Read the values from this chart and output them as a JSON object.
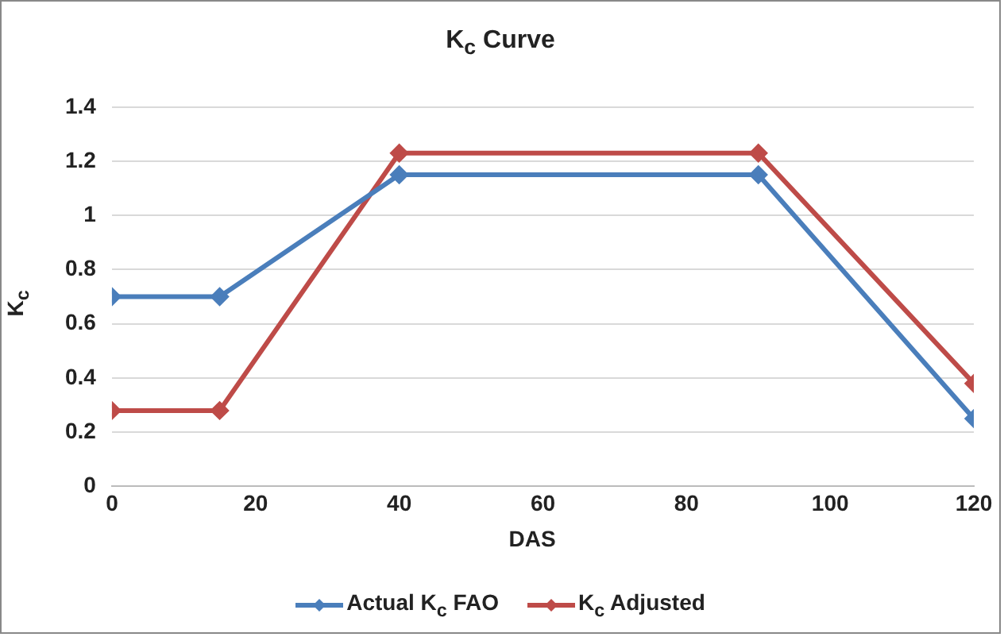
{
  "chart_data": {
    "type": "line",
    "title": "K$_{c}$ Curve",
    "xlabel": "DAS",
    "ylabel": "K$_{c}$",
    "x": [
      0,
      15,
      40,
      90,
      120
    ],
    "series": [
      {
        "name": "Actual K$_{c}$ FAO",
        "color": "#4a7ebb",
        "values": [
          0.7,
          0.7,
          1.15,
          1.15,
          0.25
        ]
      },
      {
        "name": "K$_{c}$ Adjusted",
        "color": "#be4b48",
        "values": [
          0.28,
          0.28,
          1.23,
          1.23,
          0.38
        ]
      }
    ],
    "xlim": [
      0,
      120
    ],
    "xticks": [
      0,
      20,
      40,
      60,
      80,
      100,
      120
    ],
    "ylim": [
      0,
      1.4
    ],
    "yticks": [
      0,
      0.2,
      0.4,
      0.6,
      0.8,
      1,
      1.2,
      1.4
    ],
    "grid": "y",
    "legend": "bottom",
    "marker": "diamond",
    "line_style": "solid"
  }
}
